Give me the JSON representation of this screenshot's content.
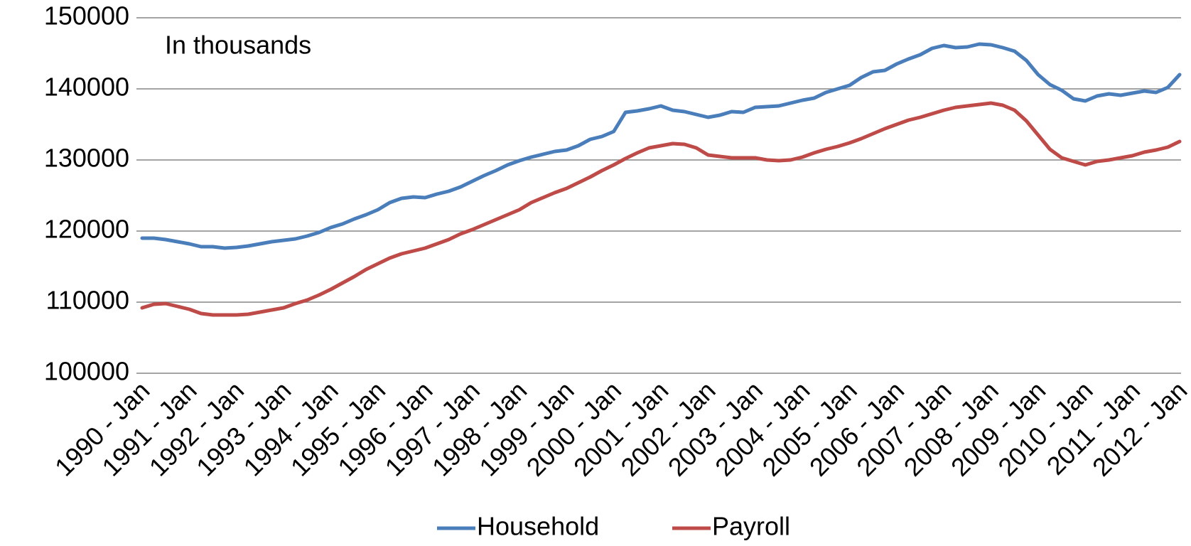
{
  "chart_data": {
    "type": "line",
    "annotation": "In thousands",
    "categories": [
      "1990 - Jan",
      null,
      null,
      null,
      "1991 - Jan",
      null,
      null,
      null,
      "1992 - Jan",
      null,
      null,
      null,
      "1993 - Jan",
      null,
      null,
      null,
      "1994 - Jan",
      null,
      null,
      null,
      "1995 - Jan",
      null,
      null,
      null,
      "1996 - Jan",
      null,
      null,
      null,
      "1997 - Jan",
      null,
      null,
      null,
      "1998 - Jan",
      null,
      null,
      null,
      "1999 - Jan",
      null,
      null,
      null,
      "2000 - Jan",
      null,
      null,
      null,
      "2001 - Jan",
      null,
      null,
      null,
      "2002 - Jan",
      null,
      null,
      null,
      "2003 - Jan",
      null,
      null,
      null,
      "2004 - Jan",
      null,
      null,
      null,
      "2005 - Jan",
      null,
      null,
      null,
      "2006 - Jan",
      null,
      null,
      null,
      "2007 - Jan",
      null,
      null,
      null,
      "2008 - Jan",
      null,
      null,
      null,
      "2009 - Jan",
      null,
      null,
      null,
      "2010 - Jan",
      null,
      null,
      null,
      "2011 - Jan",
      null,
      null,
      null,
      "2012 - Jan"
    ],
    "series": [
      {
        "name": "Household",
        "color": "#4a7ebb",
        "values": [
          119000,
          119000,
          118800,
          118500,
          118200,
          117800,
          117800,
          117600,
          117700,
          117900,
          118200,
          118500,
          118700,
          118900,
          119300,
          119800,
          120500,
          121000,
          121700,
          122300,
          123000,
          124000,
          124600,
          124800,
          124700,
          125200,
          125600,
          126200,
          127000,
          127800,
          128500,
          129300,
          129900,
          130400,
          130800,
          131200,
          131400,
          132000,
          132900,
          133300,
          134000,
          136700,
          136900,
          137200,
          137600,
          137000,
          136800,
          136400,
          136000,
          136300,
          136800,
          136700,
          137400,
          137500,
          137600,
          138000,
          138400,
          138700,
          139500,
          140000,
          140500,
          141600,
          142400,
          142600,
          143500,
          144200,
          144800,
          145700,
          146100,
          145800,
          145900,
          146300,
          146200,
          145800,
          145300,
          144000,
          142000,
          140600,
          139800,
          138600,
          138300,
          139000,
          139300,
          139100,
          139400,
          139700,
          139500,
          140200,
          142000
        ]
      },
      {
        "name": "Payroll",
        "color": "#be4b48",
        "values": [
          109200,
          109700,
          109800,
          109400,
          109000,
          108400,
          108200,
          108200,
          108200,
          108300,
          108600,
          108900,
          109200,
          109800,
          110300,
          111000,
          111800,
          112700,
          113600,
          114600,
          115400,
          116200,
          116800,
          117200,
          117600,
          118200,
          118800,
          119600,
          120200,
          120900,
          121600,
          122300,
          123000,
          124000,
          124700,
          125400,
          126000,
          126800,
          127600,
          128500,
          129300,
          130200,
          131000,
          131700,
          132000,
          132300,
          132200,
          131700,
          130700,
          130500,
          130300,
          130300,
          130300,
          130000,
          129900,
          130000,
          130400,
          131000,
          131500,
          131900,
          132400,
          133000,
          133700,
          134400,
          135000,
          135600,
          136000,
          136500,
          137000,
          137400,
          137600,
          137800,
          138000,
          137700,
          137000,
          135500,
          133500,
          131500,
          130300,
          129800,
          129300,
          129800,
          130000,
          130300,
          130600,
          131100,
          131400,
          131800,
          132600
        ]
      }
    ],
    "ylim": [
      100000,
      150000
    ],
    "yticks": [
      100000,
      110000,
      120000,
      130000,
      140000,
      150000
    ],
    "grid": true,
    "legend": "bottom"
  }
}
